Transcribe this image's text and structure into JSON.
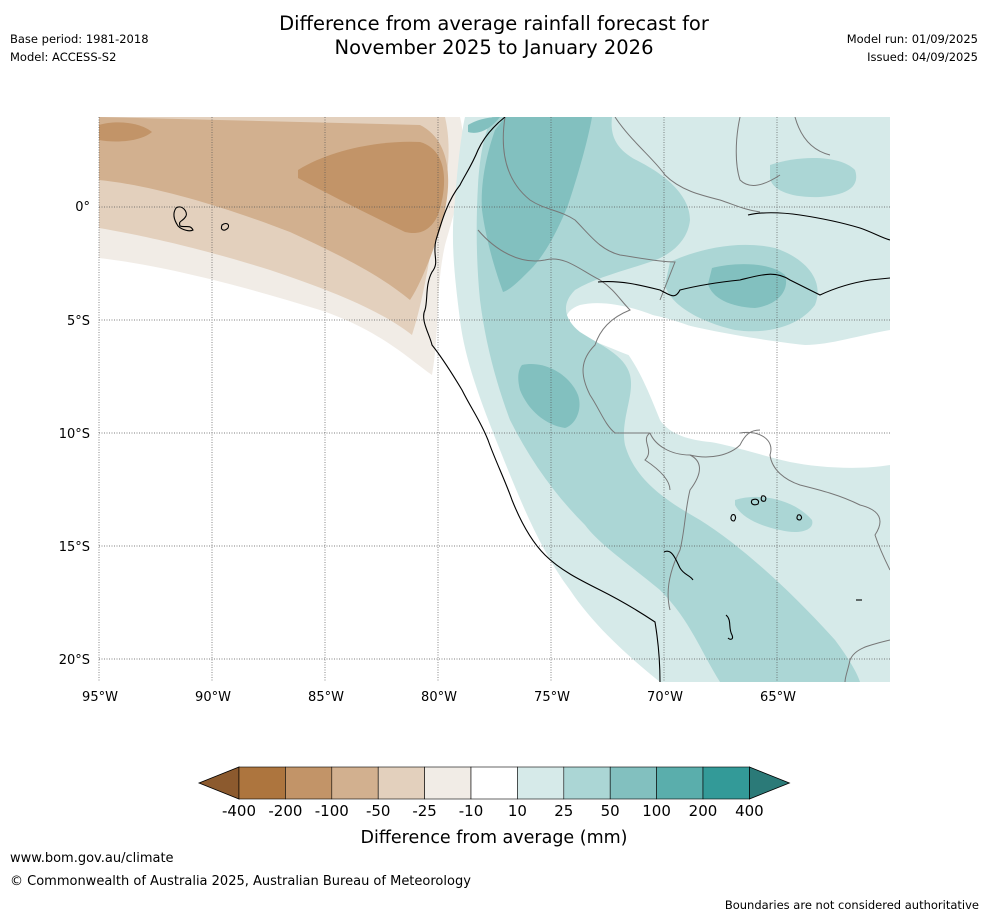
{
  "title": {
    "line1": "Difference from average rainfall forecast for",
    "line2": "November 2025 to January 2026"
  },
  "meta_left": {
    "base_period": "Base period: 1981-2018",
    "model": "Model: ACCESS-S2"
  },
  "meta_right": {
    "model_run": "Model run: 01/09/2025",
    "issued": "Issued: 04/09/2025"
  },
  "map": {
    "lat_labels": [
      "0°",
      "5°S",
      "10°S",
      "15°S",
      "20°S"
    ],
    "lon_labels": [
      "95°W",
      "90°W",
      "85°W",
      "80°W",
      "75°W",
      "70°W",
      "65°W"
    ]
  },
  "colorbar": {
    "tick_labels": [
      "-400",
      "-200",
      "-100",
      "-50",
      "-25",
      "-10",
      "10",
      "25",
      "50",
      "100",
      "200",
      "400"
    ],
    "label": "Difference from average (mm)",
    "colors": [
      "#8c5a2e",
      "#ad753e",
      "#c29468",
      "#d2b08f",
      "#e3d0bd",
      "#f1ece6",
      "#ffffff",
      "#d6eae9",
      "#abd6d5",
      "#82c0bf",
      "#5aaeac",
      "#339a98",
      "#2b7a78"
    ]
  },
  "footer": {
    "url": "www.bom.gov.au/climate",
    "copyright": "© Commonwealth of Australia 2025, Australian Bureau of Meteorology",
    "note": "Boundaries are not considered authoritative"
  }
}
